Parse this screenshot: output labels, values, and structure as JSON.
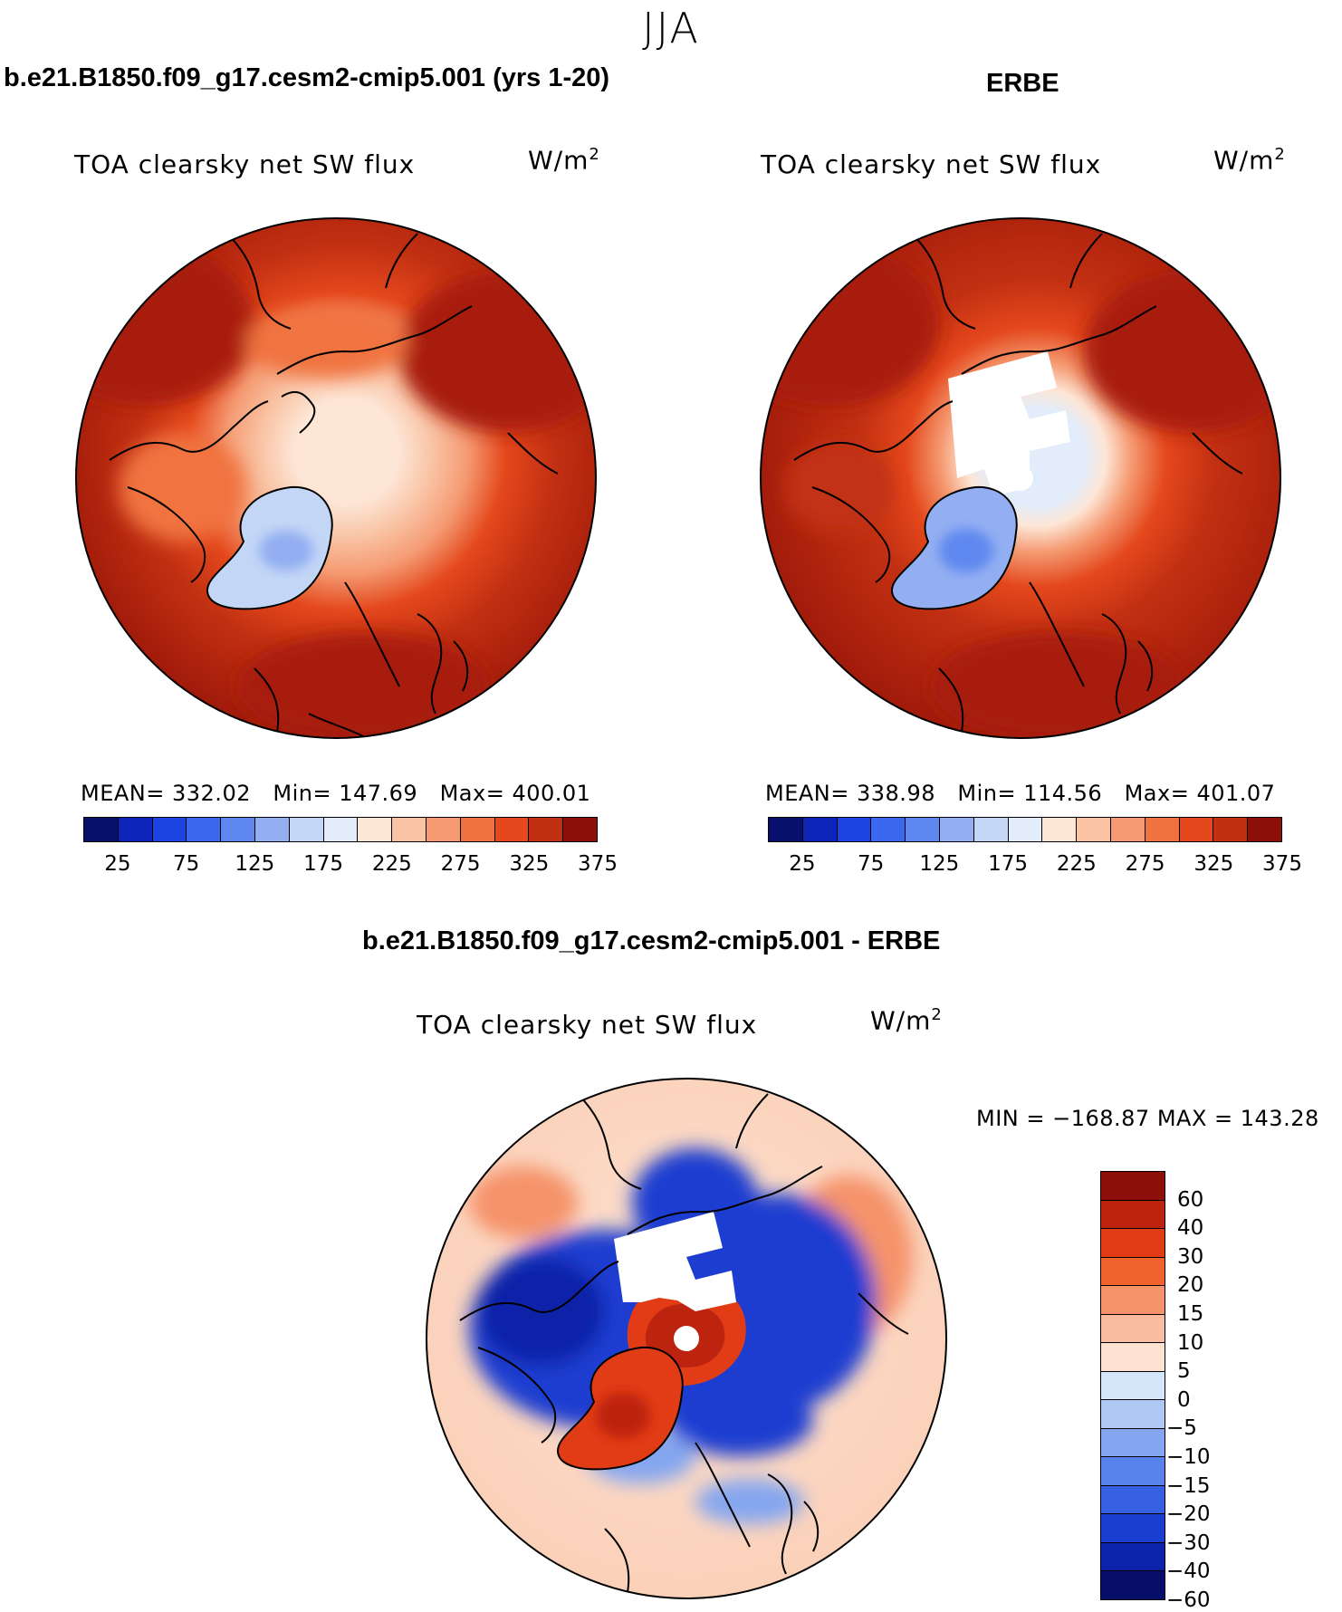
{
  "season": "JJA",
  "panels": [
    {
      "title": "b.e21.B1850.f09_g17.cesm2-cmip5.001 (yrs 1-20)",
      "variable": "TOA clearsky net SW flux",
      "units": "W/m",
      "units_sup": "2",
      "mean_label": "MEAN=",
      "mean": "332.02",
      "min_label": "Min=",
      "min": "147.69",
      "max_label": "Max=",
      "max": "400.01"
    },
    {
      "title": "ERBE",
      "variable": "TOA clearsky net SW flux",
      "units": "W/m",
      "units_sup": "2",
      "mean_label": "MEAN=",
      "mean": "338.98",
      "min_label": "Min=",
      "min": "114.56",
      "max_label": "Max=",
      "max": "401.07"
    },
    {
      "title": "b.e21.B1850.f09_g17.cesm2-cmip5.001 - ERBE",
      "variable": "TOA clearsky net SW flux",
      "units": "W/m",
      "units_sup": "2",
      "minmax": "MIN = −168.87 MAX = 143.28"
    }
  ],
  "abs_colorbar": {
    "ticks": [
      "25",
      "75",
      "125",
      "175",
      "225",
      "275",
      "325",
      "375"
    ],
    "colors": [
      "#08106e",
      "#0d24b8",
      "#1b44e0",
      "#3a68ee",
      "#5e88f0",
      "#93aff2",
      "#c3d6f6",
      "#e2ecfa",
      "#fde6d6",
      "#f9c3a4",
      "#f59a72",
      "#f0733f",
      "#e4481c",
      "#c23012",
      "#8c1008"
    ]
  },
  "diff_colorbar": {
    "labels": [
      "60",
      "40",
      "30",
      "20",
      "15",
      "10",
      "5",
      "0",
      "−5",
      "−10",
      "−15",
      "−20",
      "−30",
      "−40",
      "−60"
    ],
    "colors": [
      "#8c1008",
      "#bd2410",
      "#e13c16",
      "#f0622c",
      "#f5936a",
      "#f9bca0",
      "#fde2d2",
      "#d6e6fa",
      "#b0c8f4",
      "#84a6f0",
      "#5a82ec",
      "#3560e2",
      "#1a3ed0",
      "#0c22a8",
      "#070f6a"
    ]
  }
}
